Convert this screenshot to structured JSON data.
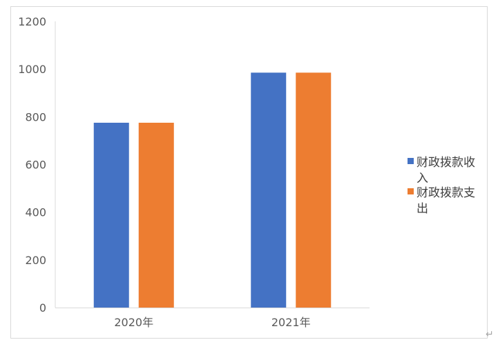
{
  "chart_data": {
    "type": "bar",
    "title": "",
    "xlabel": "",
    "ylabel": "",
    "categories": [
      "2020年",
      "2021年"
    ],
    "series": [
      {
        "name": "财政拨款收入",
        "values": [
          775,
          985
        ],
        "color": "#4472C4"
      },
      {
        "name": "财政拨款支出",
        "values": [
          775,
          985
        ],
        "color": "#ED7D31"
      }
    ],
    "ylim": [
      0,
      1200
    ],
    "yticks": [
      0,
      200,
      400,
      600,
      800,
      1000,
      1200
    ],
    "grid": false,
    "legend_position": "right",
    "legend_labels": [
      [
        "财政拨款收",
        "入"
      ],
      [
        "财政拨款支",
        "出"
      ]
    ]
  },
  "return_mark": "↵"
}
